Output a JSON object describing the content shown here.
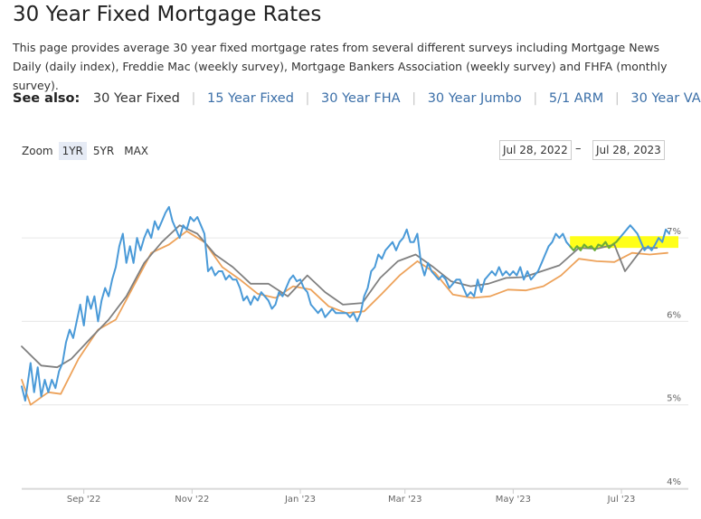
{
  "page": {
    "title": "30 Year Fixed Mortgage Rates",
    "description": "This page provides average 30 year fixed mortgage rates from several different surveys including Mortgage News Daily (daily index), Freddie Mac (weekly survey), Mortgage Bankers Association (weekly survey) and FHFA (monthly survey)."
  },
  "see_also": {
    "label": "See also:",
    "links": [
      "30 Year Fixed",
      "15 Year Fixed",
      "30 Year FHA",
      "30 Year Jumbo",
      "5/1 ARM",
      "30 Year VA"
    ]
  },
  "zoom": {
    "label": "Zoom",
    "options": [
      "1YR",
      "5YR",
      "MAX"
    ],
    "active": "1YR"
  },
  "date_range": {
    "from": "Jul 28, 2022",
    "to": "Jul 28, 2023",
    "separator": "–"
  },
  "colors": {
    "daily_index": "#4a9ad8",
    "weekly_gray": "#808080",
    "weekly_orange": "#eda25a",
    "highlight": "#ffff00",
    "highlight_line": "#6fae2e"
  },
  "chart_data": {
    "type": "line",
    "ylim": [
      4,
      7.9
    ],
    "y_ticks": [
      {
        "value": 4,
        "label": "4%"
      },
      {
        "value": 5,
        "label": "5%"
      },
      {
        "value": 6,
        "label": "6%"
      },
      {
        "value": 7,
        "label": "7%"
      }
    ],
    "x_range": [
      "2022-07-28",
      "2023-07-28"
    ],
    "x_ticks": [
      {
        "date": "2022-09-01",
        "label": "Sep '22"
      },
      {
        "date": "2022-11-01",
        "label": "Nov '22"
      },
      {
        "date": "2023-01-01",
        "label": "Jan '23"
      },
      {
        "date": "2023-03-01",
        "label": "Mar '23"
      },
      {
        "date": "2023-05-01",
        "label": "May '23"
      },
      {
        "date": "2023-07-01",
        "label": "Jul '23"
      }
    ],
    "grid": true,
    "legend": "none",
    "series": [
      {
        "color": "#4a9ad8",
        "points": [
          [
            "2022-07-28",
            5.22
          ],
          [
            "2022-07-30",
            5.05
          ],
          [
            "2022-08-02",
            5.5
          ],
          [
            "2022-08-04",
            5.15
          ],
          [
            "2022-08-06",
            5.45
          ],
          [
            "2022-08-08",
            5.1
          ],
          [
            "2022-08-10",
            5.3
          ],
          [
            "2022-08-12",
            5.15
          ],
          [
            "2022-08-14",
            5.3
          ],
          [
            "2022-08-16",
            5.2
          ],
          [
            "2022-08-18",
            5.4
          ],
          [
            "2022-08-20",
            5.5
          ],
          [
            "2022-08-22",
            5.75
          ],
          [
            "2022-08-24",
            5.9
          ],
          [
            "2022-08-26",
            5.8
          ],
          [
            "2022-08-28",
            6.0
          ],
          [
            "2022-08-30",
            6.2
          ],
          [
            "2022-09-01",
            5.95
          ],
          [
            "2022-09-03",
            6.3
          ],
          [
            "2022-09-05",
            6.15
          ],
          [
            "2022-09-07",
            6.3
          ],
          [
            "2022-09-09",
            6.0
          ],
          [
            "2022-09-11",
            6.25
          ],
          [
            "2022-09-13",
            6.4
          ],
          [
            "2022-09-15",
            6.3
          ],
          [
            "2022-09-17",
            6.5
          ],
          [
            "2022-09-19",
            6.65
          ],
          [
            "2022-09-21",
            6.9
          ],
          [
            "2022-09-23",
            7.05
          ],
          [
            "2022-09-25",
            6.7
          ],
          [
            "2022-09-27",
            6.9
          ],
          [
            "2022-09-29",
            6.7
          ],
          [
            "2022-10-01",
            7.0
          ],
          [
            "2022-10-03",
            6.85
          ],
          [
            "2022-10-05",
            7.0
          ],
          [
            "2022-10-07",
            7.1
          ],
          [
            "2022-10-09",
            7.0
          ],
          [
            "2022-10-11",
            7.2
          ],
          [
            "2022-10-13",
            7.1
          ],
          [
            "2022-10-15",
            7.2
          ],
          [
            "2022-10-17",
            7.3
          ],
          [
            "2022-10-19",
            7.37
          ],
          [
            "2022-10-21",
            7.2
          ],
          [
            "2022-10-23",
            7.1
          ],
          [
            "2022-10-25",
            7.0
          ],
          [
            "2022-10-27",
            7.15
          ],
          [
            "2022-10-29",
            7.1
          ],
          [
            "2022-10-31",
            7.25
          ],
          [
            "2022-11-02",
            7.2
          ],
          [
            "2022-11-04",
            7.25
          ],
          [
            "2022-11-06",
            7.15
          ],
          [
            "2022-11-08",
            7.05
          ],
          [
            "2022-11-10",
            6.6
          ],
          [
            "2022-11-12",
            6.65
          ],
          [
            "2022-11-14",
            6.55
          ],
          [
            "2022-11-16",
            6.6
          ],
          [
            "2022-11-18",
            6.6
          ],
          [
            "2022-11-20",
            6.5
          ],
          [
            "2022-11-22",
            6.55
          ],
          [
            "2022-11-24",
            6.5
          ],
          [
            "2022-11-26",
            6.5
          ],
          [
            "2022-11-28",
            6.4
          ],
          [
            "2022-11-30",
            6.25
          ],
          [
            "2022-12-02",
            6.3
          ],
          [
            "2022-12-04",
            6.2
          ],
          [
            "2022-12-06",
            6.3
          ],
          [
            "2022-12-08",
            6.25
          ],
          [
            "2022-12-10",
            6.35
          ],
          [
            "2022-12-12",
            6.3
          ],
          [
            "2022-12-14",
            6.25
          ],
          [
            "2022-12-16",
            6.15
          ],
          [
            "2022-12-18",
            6.2
          ],
          [
            "2022-12-20",
            6.35
          ],
          [
            "2022-12-22",
            6.3
          ],
          [
            "2022-12-24",
            6.4
          ],
          [
            "2022-12-26",
            6.5
          ],
          [
            "2022-12-28",
            6.55
          ],
          [
            "2022-12-30",
            6.48
          ],
          [
            "2023-01-01",
            6.5
          ],
          [
            "2023-01-03",
            6.4
          ],
          [
            "2023-01-05",
            6.35
          ],
          [
            "2023-01-07",
            6.2
          ],
          [
            "2023-01-09",
            6.15
          ],
          [
            "2023-01-11",
            6.1
          ],
          [
            "2023-01-13",
            6.15
          ],
          [
            "2023-01-15",
            6.05
          ],
          [
            "2023-01-17",
            6.1
          ],
          [
            "2023-01-19",
            6.15
          ],
          [
            "2023-01-21",
            6.1
          ],
          [
            "2023-01-23",
            6.1
          ],
          [
            "2023-01-25",
            6.1
          ],
          [
            "2023-01-27",
            6.1
          ],
          [
            "2023-01-29",
            6.05
          ],
          [
            "2023-01-31",
            6.1
          ],
          [
            "2023-02-02",
            6.0
          ],
          [
            "2023-02-04",
            6.1
          ],
          [
            "2023-02-06",
            6.3
          ],
          [
            "2023-02-08",
            6.4
          ],
          [
            "2023-02-10",
            6.6
          ],
          [
            "2023-02-12",
            6.65
          ],
          [
            "2023-02-14",
            6.8
          ],
          [
            "2023-02-16",
            6.75
          ],
          [
            "2023-02-18",
            6.85
          ],
          [
            "2023-02-20",
            6.9
          ],
          [
            "2023-02-22",
            6.95
          ],
          [
            "2023-02-24",
            6.85
          ],
          [
            "2023-02-26",
            6.95
          ],
          [
            "2023-02-28",
            7.0
          ],
          [
            "2023-03-02",
            7.1
          ],
          [
            "2023-03-04",
            6.95
          ],
          [
            "2023-03-06",
            6.95
          ],
          [
            "2023-03-08",
            7.05
          ],
          [
            "2023-03-10",
            6.7
          ],
          [
            "2023-03-12",
            6.55
          ],
          [
            "2023-03-14",
            6.7
          ],
          [
            "2023-03-16",
            6.6
          ],
          [
            "2023-03-18",
            6.55
          ],
          [
            "2023-03-20",
            6.5
          ],
          [
            "2023-03-22",
            6.55
          ],
          [
            "2023-03-24",
            6.5
          ],
          [
            "2023-03-26",
            6.4
          ],
          [
            "2023-03-28",
            6.45
          ],
          [
            "2023-03-30",
            6.5
          ],
          [
            "2023-04-01",
            6.5
          ],
          [
            "2023-04-03",
            6.4
          ],
          [
            "2023-04-05",
            6.3
          ],
          [
            "2023-04-07",
            6.35
          ],
          [
            "2023-04-09",
            6.3
          ],
          [
            "2023-04-11",
            6.5
          ],
          [
            "2023-04-13",
            6.35
          ],
          [
            "2023-04-15",
            6.5
          ],
          [
            "2023-04-17",
            6.55
          ],
          [
            "2023-04-19",
            6.6
          ],
          [
            "2023-04-21",
            6.55
          ],
          [
            "2023-04-23",
            6.65
          ],
          [
            "2023-04-25",
            6.55
          ],
          [
            "2023-04-27",
            6.6
          ],
          [
            "2023-04-29",
            6.55
          ],
          [
            "2023-05-01",
            6.6
          ],
          [
            "2023-05-03",
            6.55
          ],
          [
            "2023-05-05",
            6.65
          ],
          [
            "2023-05-07",
            6.5
          ],
          [
            "2023-05-09",
            6.6
          ],
          [
            "2023-05-11",
            6.5
          ],
          [
            "2023-05-13",
            6.55
          ],
          [
            "2023-05-15",
            6.6
          ],
          [
            "2023-05-17",
            6.7
          ],
          [
            "2023-05-19",
            6.8
          ],
          [
            "2023-05-21",
            6.9
          ],
          [
            "2023-05-23",
            6.95
          ],
          [
            "2023-05-25",
            7.05
          ],
          [
            "2023-05-27",
            7.0
          ],
          [
            "2023-05-29",
            7.05
          ],
          [
            "2023-05-31",
            6.95
          ],
          [
            "2023-06-02",
            6.9
          ],
          [
            "2023-06-04",
            6.85
          ],
          [
            "2023-06-06",
            6.9
          ],
          [
            "2023-06-08",
            6.85
          ],
          [
            "2023-06-10",
            6.92
          ],
          [
            "2023-06-12",
            6.88
          ],
          [
            "2023-06-14",
            6.9
          ],
          [
            "2023-06-16",
            6.85
          ],
          [
            "2023-06-18",
            6.92
          ],
          [
            "2023-06-20",
            6.9
          ],
          [
            "2023-06-22",
            6.95
          ],
          [
            "2023-06-24",
            6.88
          ],
          [
            "2023-06-26",
            6.92
          ],
          [
            "2023-06-28",
            6.95
          ],
          [
            "2023-06-30",
            7.0
          ],
          [
            "2023-07-02",
            7.05
          ],
          [
            "2023-07-04",
            7.1
          ],
          [
            "2023-07-06",
            7.15
          ],
          [
            "2023-07-08",
            7.1
          ],
          [
            "2023-07-10",
            7.05
          ],
          [
            "2023-07-12",
            6.95
          ],
          [
            "2023-07-14",
            6.85
          ],
          [
            "2023-07-16",
            6.9
          ],
          [
            "2023-07-18",
            6.85
          ],
          [
            "2023-07-20",
            6.92
          ],
          [
            "2023-07-22",
            7.0
          ],
          [
            "2023-07-24",
            6.95
          ],
          [
            "2023-07-26",
            7.1
          ],
          [
            "2023-07-28",
            7.05
          ]
        ]
      },
      {
        "color": "#808080",
        "points": [
          [
            "2022-07-28",
            5.7
          ],
          [
            "2022-08-08",
            5.47
          ],
          [
            "2022-08-17",
            5.45
          ],
          [
            "2022-08-25",
            5.55
          ],
          [
            "2022-09-05",
            5.8
          ],
          [
            "2022-09-15",
            6.02
          ],
          [
            "2022-09-25",
            6.3
          ],
          [
            "2022-10-05",
            6.7
          ],
          [
            "2022-10-15",
            6.95
          ],
          [
            "2022-10-25",
            7.15
          ],
          [
            "2022-11-04",
            7.05
          ],
          [
            "2022-11-14",
            6.8
          ],
          [
            "2022-11-24",
            6.65
          ],
          [
            "2022-12-04",
            6.45
          ],
          [
            "2022-12-14",
            6.45
          ],
          [
            "2022-12-25",
            6.3
          ],
          [
            "2023-01-05",
            6.55
          ],
          [
            "2023-01-15",
            6.35
          ],
          [
            "2023-01-25",
            6.2
          ],
          [
            "2023-02-05",
            6.22
          ],
          [
            "2023-02-15",
            6.52
          ],
          [
            "2023-02-25",
            6.72
          ],
          [
            "2023-03-07",
            6.8
          ],
          [
            "2023-03-17",
            6.65
          ],
          [
            "2023-03-27",
            6.48
          ],
          [
            "2023-04-07",
            6.42
          ],
          [
            "2023-04-17",
            6.45
          ],
          [
            "2023-04-27",
            6.52
          ],
          [
            "2023-05-07",
            6.53
          ],
          [
            "2023-05-17",
            6.6
          ],
          [
            "2023-05-27",
            6.67
          ],
          [
            "2023-06-07",
            6.88
          ],
          [
            "2023-06-17",
            6.87
          ],
          [
            "2023-06-27",
            6.92
          ],
          [
            "2023-07-03",
            6.6
          ],
          [
            "2023-07-13",
            6.88
          ],
          [
            "2023-07-21",
            6.88
          ]
        ]
      },
      {
        "color": "#eda25a",
        "points": [
          [
            "2022-07-28",
            5.3
          ],
          [
            "2022-08-02",
            5.0
          ],
          [
            "2022-08-12",
            5.15
          ],
          [
            "2022-08-19",
            5.13
          ],
          [
            "2022-08-29",
            5.55
          ],
          [
            "2022-09-09",
            5.9
          ],
          [
            "2022-09-19",
            6.02
          ],
          [
            "2022-09-29",
            6.42
          ],
          [
            "2022-10-09",
            6.82
          ],
          [
            "2022-10-19",
            6.92
          ],
          [
            "2022-10-29",
            7.08
          ],
          [
            "2022-11-08",
            6.95
          ],
          [
            "2022-11-18",
            6.65
          ],
          [
            "2022-11-28",
            6.5
          ],
          [
            "2022-12-08",
            6.33
          ],
          [
            "2022-12-18",
            6.28
          ],
          [
            "2022-12-28",
            6.42
          ],
          [
            "2023-01-07",
            6.38
          ],
          [
            "2023-01-17",
            6.18
          ],
          [
            "2023-01-27",
            6.1
          ],
          [
            "2023-02-06",
            6.12
          ],
          [
            "2023-02-16",
            6.33
          ],
          [
            "2023-02-26",
            6.55
          ],
          [
            "2023-03-08",
            6.72
          ],
          [
            "2023-03-18",
            6.58
          ],
          [
            "2023-03-28",
            6.32
          ],
          [
            "2023-04-08",
            6.28
          ],
          [
            "2023-04-18",
            6.3
          ],
          [
            "2023-04-28",
            6.38
          ],
          [
            "2023-05-08",
            6.37
          ],
          [
            "2023-05-18",
            6.42
          ],
          [
            "2023-05-28",
            6.55
          ],
          [
            "2023-06-07",
            6.75
          ],
          [
            "2023-06-17",
            6.72
          ],
          [
            "2023-06-27",
            6.71
          ],
          [
            "2023-07-07",
            6.82
          ],
          [
            "2023-07-17",
            6.8
          ],
          [
            "2023-07-27",
            6.82
          ]
        ]
      }
    ],
    "highlight": {
      "x_start": "2023-06-02",
      "x_end": "2023-07-28",
      "y_from": 6.88,
      "y_to": 7.02
    }
  }
}
